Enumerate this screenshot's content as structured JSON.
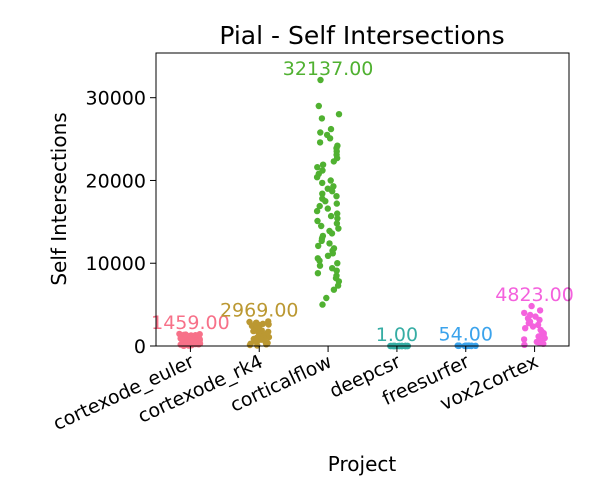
{
  "chart_data": {
    "type": "scatter",
    "subtype": "strip",
    "title": "Pial - Self Intersections",
    "xlabel": "Project",
    "ylabel": "Self Intersections",
    "ylim": [
      0,
      35400
    ],
    "yticks": [
      0,
      10000,
      20000,
      30000
    ],
    "ytick_labels": [
      "0",
      "10000",
      "20000",
      "30000"
    ],
    "grid": false,
    "categories": [
      "cortexode_euler",
      "cortexode_rk4",
      "corticalflow",
      "deepcsr",
      "freesurfer",
      "vox2cortex"
    ],
    "series": [
      {
        "category": "cortexode_euler",
        "color": "#f77189",
        "max_label": "1459.00",
        "values": [
          1459,
          1420,
          1380,
          1350,
          1310,
          1280,
          1250,
          1220,
          1190,
          1160,
          1130,
          1100,
          1070,
          1040,
          1010,
          980,
          950,
          920,
          890,
          860,
          830,
          800,
          770,
          740,
          710,
          680,
          650,
          620,
          590,
          560,
          530,
          500,
          470,
          440,
          410,
          380,
          350,
          320,
          290,
          260,
          230,
          200,
          170,
          140,
          110,
          80,
          50,
          20
        ]
      },
      {
        "category": "cortexode_rk4",
        "color": "#bb9832",
        "max_label": "2969.00",
        "values": [
          2969,
          2900,
          2820,
          2750,
          2680,
          2600,
          2520,
          2440,
          2360,
          2280,
          2200,
          2120,
          2040,
          1960,
          1880,
          1800,
          1720,
          1640,
          1560,
          1480,
          1400,
          1320,
          1240,
          1160,
          1080,
          1000,
          920,
          840,
          760,
          680,
          600,
          520,
          440,
          360,
          280,
          200,
          120,
          60
        ]
      },
      {
        "category": "corticalflow",
        "color": "#50b131",
        "max_label": "32137.00",
        "values": [
          32137,
          29000,
          28000,
          27500,
          26200,
          25800,
          25500,
          25100,
          24600,
          24200,
          23900,
          23500,
          23100,
          22700,
          22300,
          21900,
          21600,
          21200,
          20800,
          20400,
          20000,
          19700,
          19300,
          19000,
          18700,
          18400,
          18100,
          17800,
          17500,
          17200,
          16900,
          16600,
          16300,
          16000,
          15700,
          15400,
          15100,
          14800,
          14500,
          14200,
          13900,
          13600,
          13300,
          13000,
          12700,
          12400,
          12100,
          11800,
          11500,
          11200,
          10900,
          10600,
          10300,
          10000,
          9700,
          9400,
          9100,
          8800,
          8500,
          8200,
          7800,
          7300,
          6800,
          5800,
          5000
        ]
      },
      {
        "category": "deepcsr",
        "color": "#36ada4",
        "max_label": "1.00",
        "values": [
          1,
          1,
          0,
          1,
          0,
          1,
          0,
          0,
          1,
          0,
          1,
          0,
          0,
          1,
          0,
          0,
          1,
          0,
          0,
          1
        ]
      },
      {
        "category": "freesurfer",
        "color": "#3ba3ec",
        "max_label": "54.00",
        "values": [
          54,
          50,
          45,
          40,
          36,
          32,
          28,
          24,
          20,
          17,
          14,
          11,
          8,
          5,
          3,
          1
        ]
      },
      {
        "category": "vox2cortex",
        "color": "#f461dd",
        "max_label": "4823.00",
        "values": [
          4823,
          4300,
          4000,
          3750,
          3550,
          3350,
          3150,
          2950,
          2750,
          2550,
          2350,
          2150,
          1950,
          1750,
          1550,
          1350,
          1150,
          950,
          800,
          650,
          500,
          380,
          260,
          150
        ]
      }
    ]
  }
}
